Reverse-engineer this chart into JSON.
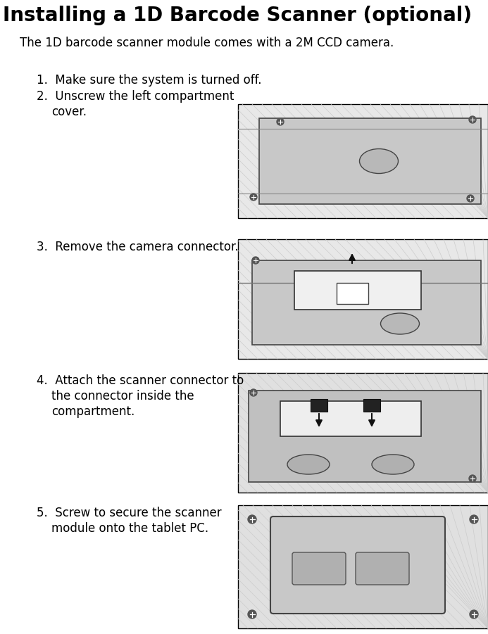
{
  "title": "Installing a 1D Barcode Scanner (optional)",
  "subtitle": "The 1D barcode scanner module comes with a 2M CCD camera.",
  "step1": "1.  Make sure the system is turned off.",
  "step2a": "2.  Unscrew the left compartment",
  "step2b": "cover.",
  "step3": "3.  Remove the camera connector.",
  "step4a": "4.  Attach the scanner connector to",
  "step4b": "the connector inside the",
  "step4c": "compartment.",
  "step5a": "5.  Screw to secure the scanner",
  "step5b": "module onto the tablet PC.",
  "bg_color": "#ffffff",
  "text_color": "#000000",
  "title_fontsize": 20,
  "subtitle_fontsize": 12,
  "step_fontsize": 12,
  "img_face": "#d4d4d4",
  "img_edge": "#000000",
  "img_line": "#888888",
  "img_dark": "#555555",
  "img_white": "#ffffff"
}
